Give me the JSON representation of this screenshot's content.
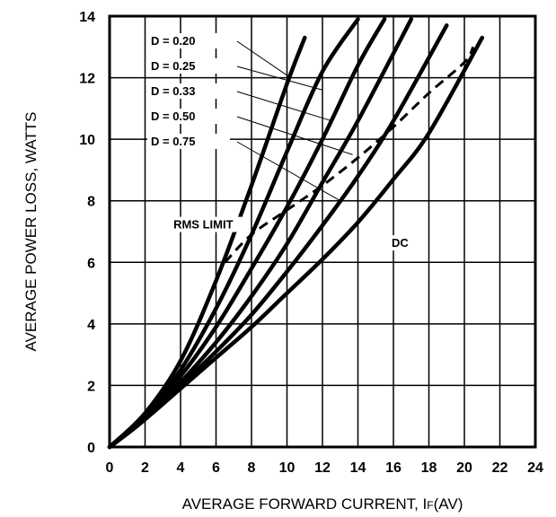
{
  "chart_data": {
    "type": "line",
    "title": "",
    "xlabel": "AVERAGE FORWARD CURRENT, I",
    "xlabel_subscript": "F",
    "xlabel_suffix": "(AV)",
    "ylabel": "AVERAGE POWER LOSS, WATTS",
    "xlim": [
      0,
      24
    ],
    "ylim": [
      0,
      14
    ],
    "x_ticks": [
      0,
      2,
      4,
      6,
      8,
      10,
      12,
      14,
      16,
      18,
      20,
      22,
      24
    ],
    "x_tick_labels": [
      "0",
      "2",
      "4",
      "6",
      "8",
      "10",
      "12",
      "14",
      "16",
      "18",
      "20",
      "22",
      "24"
    ],
    "y_ticks": [
      0,
      2,
      4,
      6,
      8,
      10,
      12,
      14
    ],
    "y_tick_labels": [
      "0",
      "2",
      "4",
      "6",
      "8",
      "10",
      "12",
      "14"
    ],
    "grid": true,
    "line_color": "#000000",
    "series": [
      {
        "name": "D = 0.20",
        "x": [
          0,
          2,
          4,
          6,
          8,
          10,
          11
        ],
        "y": [
          0,
          1.1,
          2.8,
          5.4,
          8.5,
          11.8,
          13.3
        ]
      },
      {
        "name": "D = 0.25",
        "x": [
          0,
          2,
          4,
          6,
          8,
          10,
          12,
          14
        ],
        "y": [
          0,
          1.0,
          2.5,
          4.5,
          6.9,
          9.6,
          12.2,
          13.9
        ]
      },
      {
        "name": "D = 0.33",
        "x": [
          0,
          2,
          4,
          6,
          8,
          10,
          12,
          14,
          15.5
        ],
        "y": [
          0,
          1.0,
          2.3,
          3.9,
          5.8,
          7.8,
          10.0,
          12.4,
          13.9
        ]
      },
      {
        "name": "D = 0.50",
        "x": [
          0,
          2,
          4,
          6,
          8,
          10,
          12,
          14,
          17
        ],
        "y": [
          0,
          0.9,
          2.1,
          3.4,
          4.9,
          6.6,
          8.6,
          10.6,
          13.9
        ]
      },
      {
        "name": "D = 0.75",
        "x": [
          0,
          2,
          4,
          6,
          8,
          10,
          12,
          14,
          16,
          19
        ],
        "y": [
          0,
          0.9,
          2.0,
          3.1,
          4.3,
          5.7,
          7.2,
          8.8,
          10.6,
          13.7
        ]
      },
      {
        "name": "DC",
        "x": [
          0,
          2,
          4,
          6,
          8,
          10,
          12,
          14,
          16,
          18,
          21
        ],
        "y": [
          0,
          0.9,
          1.9,
          2.9,
          3.9,
          5.0,
          6.1,
          7.3,
          8.7,
          10.2,
          13.3
        ]
      },
      {
        "name": "RMS LIMIT",
        "dashed": true,
        "x": [
          6.5,
          8,
          10,
          12,
          14,
          16,
          18,
          20,
          20.5
        ],
        "y": [
          6.0,
          6.9,
          7.7,
          8.5,
          9.4,
          10.4,
          11.5,
          12.5,
          13.0
        ]
      }
    ],
    "annotations": [
      {
        "text": "D = 0.20",
        "target_series": "D = 0.20",
        "target": [
          10.2,
          12.0
        ]
      },
      {
        "text": "D = 0.25",
        "target_series": "D = 0.25",
        "target": [
          12.0,
          11.6
        ]
      },
      {
        "text": "D = 0.33",
        "target_series": "D = 0.33",
        "target": [
          12.5,
          10.6
        ]
      },
      {
        "text": "D = 0.50",
        "target_series": "D = 0.50",
        "target": [
          13.7,
          9.5
        ]
      },
      {
        "text": "D = 0.75",
        "target_series": "D = 0.75",
        "target": [
          13.0,
          8.0
        ]
      },
      {
        "text": "RMS LIMIT",
        "at": [
          3.6,
          7.1
        ]
      },
      {
        "text": "DC",
        "at": [
          15.9,
          6.5
        ]
      }
    ]
  }
}
